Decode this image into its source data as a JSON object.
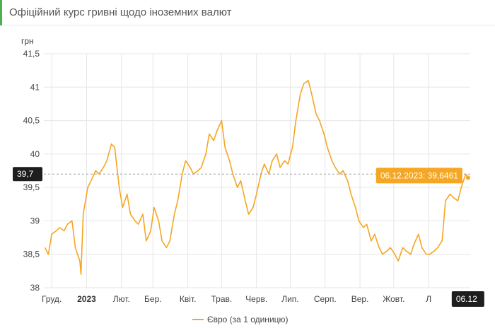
{
  "header": {
    "title": "Офіційний курс гривні щодо іноземних валют"
  },
  "chart_data": {
    "type": "line",
    "title": "",
    "xlabel": "",
    "ylabel": "грн",
    "ylim": [
      38,
      41.5
    ],
    "y_ticks": [
      "38",
      "38,5",
      "39",
      "39,5",
      "40",
      "40,5",
      "41",
      "41,5"
    ],
    "x_ticks": [
      {
        "label": "Груд.",
        "date": "2022-12-01",
        "bold": false
      },
      {
        "label": "2023",
        "date": "2023-01-01",
        "bold": true
      },
      {
        "label": "Лют.",
        "date": "2023-02-01",
        "bold": false
      },
      {
        "label": "Бер.",
        "date": "2023-03-01",
        "bold": false
      },
      {
        "label": "Квіт.",
        "date": "2023-04-01",
        "bold": false
      },
      {
        "label": "Трав.",
        "date": "2023-05-01",
        "bold": false
      },
      {
        "label": "Черв.",
        "date": "2023-06-01",
        "bold": false
      },
      {
        "label": "Лип.",
        "date": "2023-07-01",
        "bold": false
      },
      {
        "label": "Серп.",
        "date": "2023-08-01",
        "bold": false
      },
      {
        "label": "Вер.",
        "date": "2023-09-01",
        "bold": false
      },
      {
        "label": "Жовт.",
        "date": "2023-10-01",
        "bold": false
      },
      {
        "label": "Л",
        "date": "2023-11-01",
        "bold": false
      }
    ],
    "grid": true,
    "legend_position": "bottom",
    "series": [
      {
        "name": "Євро (за 1 одиницю)",
        "color": "#f5a623",
        "x": [
          "2022-11-25",
          "2022-11-28",
          "2022-12-01",
          "2022-12-05",
          "2022-12-08",
          "2022-12-12",
          "2022-12-15",
          "2022-12-19",
          "2022-12-22",
          "2022-12-26",
          "2022-12-27",
          "2022-12-29",
          "2023-01-02",
          "2023-01-05",
          "2023-01-09",
          "2023-01-12",
          "2023-01-16",
          "2023-01-19",
          "2023-01-23",
          "2023-01-26",
          "2023-01-30",
          "2023-02-02",
          "2023-02-06",
          "2023-02-09",
          "2023-02-13",
          "2023-02-16",
          "2023-02-20",
          "2023-02-23",
          "2023-02-27",
          "2023-03-02",
          "2023-03-06",
          "2023-03-09",
          "2023-03-13",
          "2023-03-16",
          "2023-03-20",
          "2023-03-23",
          "2023-03-27",
          "2023-03-30",
          "2023-04-03",
          "2023-04-06",
          "2023-04-10",
          "2023-04-13",
          "2023-04-17",
          "2023-04-20",
          "2023-04-24",
          "2023-04-27",
          "2023-05-01",
          "2023-05-04",
          "2023-05-08",
          "2023-05-11",
          "2023-05-15",
          "2023-05-18",
          "2023-05-22",
          "2023-05-25",
          "2023-05-29",
          "2023-06-01",
          "2023-06-05",
          "2023-06-08",
          "2023-06-12",
          "2023-06-15",
          "2023-06-19",
          "2023-06-22",
          "2023-06-26",
          "2023-06-29",
          "2023-07-03",
          "2023-07-06",
          "2023-07-10",
          "2023-07-13",
          "2023-07-17",
          "2023-07-20",
          "2023-07-24",
          "2023-07-27",
          "2023-07-31",
          "2023-08-03",
          "2023-08-07",
          "2023-08-10",
          "2023-08-14",
          "2023-08-17",
          "2023-08-21",
          "2023-08-24",
          "2023-08-28",
          "2023-08-31",
          "2023-09-04",
          "2023-09-07",
          "2023-09-11",
          "2023-09-14",
          "2023-09-18",
          "2023-09-21",
          "2023-09-25",
          "2023-09-28",
          "2023-10-02",
          "2023-10-05",
          "2023-10-09",
          "2023-10-12",
          "2023-10-16",
          "2023-10-19",
          "2023-10-23",
          "2023-10-26",
          "2023-10-30",
          "2023-11-02",
          "2023-11-06",
          "2023-11-09",
          "2023-11-13",
          "2023-11-16",
          "2023-11-20",
          "2023-11-23",
          "2023-11-27",
          "2023-11-30",
          "2023-12-04",
          "2023-12-06"
        ],
        "values": [
          38.6,
          38.5,
          38.8,
          38.85,
          38.9,
          38.85,
          38.95,
          39.0,
          38.6,
          38.4,
          38.2,
          39.1,
          39.5,
          39.6,
          39.75,
          39.7,
          39.8,
          39.9,
          40.15,
          40.1,
          39.5,
          39.2,
          39.4,
          39.1,
          39.0,
          38.95,
          39.1,
          38.7,
          38.85,
          39.2,
          39.0,
          38.7,
          38.6,
          38.7,
          39.1,
          39.3,
          39.7,
          39.9,
          39.8,
          39.7,
          39.75,
          39.8,
          40.0,
          40.3,
          40.2,
          40.35,
          40.5,
          40.1,
          39.9,
          39.7,
          39.5,
          39.6,
          39.3,
          39.1,
          39.2,
          39.4,
          39.7,
          39.85,
          39.7,
          39.9,
          40.0,
          39.8,
          39.9,
          39.85,
          40.1,
          40.5,
          40.9,
          41.05,
          41.1,
          40.9,
          40.6,
          40.5,
          40.3,
          40.1,
          39.9,
          39.8,
          39.7,
          39.75,
          39.6,
          39.4,
          39.2,
          39.0,
          38.9,
          38.95,
          38.7,
          38.8,
          38.6,
          38.5,
          38.55,
          38.6,
          38.5,
          38.4,
          38.6,
          38.55,
          38.5,
          38.65,
          38.8,
          38.6,
          38.5,
          38.5,
          38.55,
          38.6,
          38.7,
          39.3,
          39.4,
          39.35,
          39.3,
          39.5,
          39.7,
          39.6461
        ]
      }
    ],
    "tooltip": {
      "text": "06.12.2023: 39,6461",
      "date": "2023-12-06",
      "value": 39.6461
    },
    "crosshair": {
      "y_label": "39,7",
      "x_label": "06.12",
      "value": 39.7
    }
  }
}
